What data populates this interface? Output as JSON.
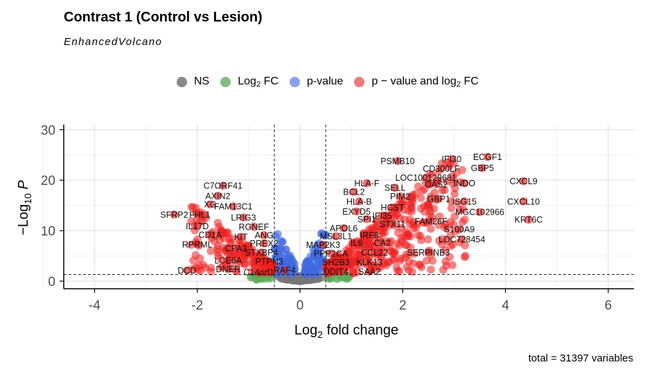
{
  "header": {
    "title": "Contrast 1 (Control vs Lesion)",
    "subtitle": "EnhancedVolcano"
  },
  "legend": {
    "ns": "NS",
    "fc_main": "Log",
    "fc_sub": "2",
    "fc_tail": " FC",
    "pval": "p-value",
    "both_main": "p − value and log",
    "both_sub": "2",
    "both_tail": " FC"
  },
  "colors": {
    "ns": "#777777",
    "fc": "#5aac5a",
    "pval": "#4169e1",
    "both": "#ee2222"
  },
  "caption": "total = 31397 variables",
  "chart_data": {
    "type": "scatter",
    "title": "Contrast 1 (Control vs Lesion)",
    "subtitle": "EnhancedVolcano",
    "xlabel": "Log2 fold change",
    "ylabel": "−Log10 P",
    "xlim": [
      -4.6,
      6.5
    ],
    "ylim": [
      -1.5,
      31
    ],
    "x_ticks": [
      -4,
      -2,
      0,
      2,
      4,
      6
    ],
    "y_ticks": [
      0,
      10,
      20,
      30
    ],
    "fc_cutoffs": [
      -0.5,
      0.5
    ],
    "p_cutoff_line": 1.3,
    "grid": true,
    "legend_position": "top",
    "series": [
      {
        "name": "NS",
        "color": "#777777"
      },
      {
        "name": "Log2 FC",
        "color": "#5aac5a"
      },
      {
        "name": "p-value",
        "color": "#4169e1"
      },
      {
        "name": "p − value and log2 FC",
        "color": "#ee2222"
      }
    ],
    "labeled_genes": [
      {
        "gene": "ECGF1",
        "x": 3.65,
        "y": 24.6
      },
      {
        "gene": "IFI30",
        "x": 2.95,
        "y": 24.2
      },
      {
        "gene": "PSMB10",
        "x": 1.9,
        "y": 23.8
      },
      {
        "gene": "GBP5",
        "x": 3.55,
        "y": 22.4
      },
      {
        "gene": "CD300LF",
        "x": 2.75,
        "y": 22.3
      },
      {
        "gene": "LOC100129681",
        "x": 2.45,
        "y": 20.5
      },
      {
        "gene": "CXCL9",
        "x": 4.35,
        "y": 19.8
      },
      {
        "gene": "INDO",
        "x": 3.2,
        "y": 19.4
      },
      {
        "gene": "OAS2",
        "x": 2.65,
        "y": 19.2
      },
      {
        "gene": "HLA-F",
        "x": 1.3,
        "y": 19.4
      },
      {
        "gene": "C7ORF41",
        "x": -1.5,
        "y": 18.9
      },
      {
        "gene": "SELL",
        "x": 1.85,
        "y": 18.5
      },
      {
        "gene": "BCL2",
        "x": 1.05,
        "y": 17.7
      },
      {
        "gene": "PIM2",
        "x": 1.95,
        "y": 16.8
      },
      {
        "gene": "GBP1",
        "x": 2.7,
        "y": 16.3
      },
      {
        "gene": "AXIN2",
        "x": -1.6,
        "y": 16.9
      },
      {
        "gene": "CXCL10",
        "x": 4.35,
        "y": 15.8
      },
      {
        "gene": "ISG15",
        "x": 3.2,
        "y": 15.8
      },
      {
        "gene": "HLA-B",
        "x": 1.15,
        "y": 15.8
      },
      {
        "gene": "XG",
        "x": -1.75,
        "y": 15.2
      },
      {
        "gene": "FAM13C1",
        "x": -1.3,
        "y": 14.8
      },
      {
        "gene": "HCST",
        "x": 1.8,
        "y": 14.6
      },
      {
        "gene": "MGC102966",
        "x": 3.5,
        "y": 13.7
      },
      {
        "gene": "EXYD5",
        "x": 1.1,
        "y": 13.8
      },
      {
        "gene": "SFRP2",
        "x": -2.45,
        "y": 13.2
      },
      {
        "gene": "FHL1",
        "x": -1.95,
        "y": 13.2
      },
      {
        "gene": "IFI35",
        "x": 1.6,
        "y": 13.0
      },
      {
        "gene": "LRIG3",
        "x": -1.1,
        "y": 12.6
      },
      {
        "gene": "SPI1",
        "x": 1.3,
        "y": 12.3
      },
      {
        "gene": "KRT6C",
        "x": 4.45,
        "y": 12.2
      },
      {
        "gene": "FAM26F",
        "x": 2.55,
        "y": 11.9
      },
      {
        "gene": "STX11",
        "x": 1.8,
        "y": 11.3
      },
      {
        "gene": "IL17D",
        "x": -2.0,
        "y": 10.9
      },
      {
        "gene": "RGNEF",
        "x": -0.9,
        "y": 10.8
      },
      {
        "gene": "APOL6",
        "x": 0.85,
        "y": 10.5
      },
      {
        "gene": "S100A9",
        "x": 3.1,
        "y": 10.3
      },
      {
        "gene": "CD1A",
        "x": -1.75,
        "y": 9.2
      },
      {
        "gene": "KIT",
        "x": -1.15,
        "y": 8.8
      },
      {
        "gene": "ANG",
        "x": -0.7,
        "y": 9.1
      },
      {
        "gene": "IRF8",
        "x": 1.35,
        "y": 9.1
      },
      {
        "gene": "MSL3L1",
        "x": 0.7,
        "y": 8.9
      },
      {
        "gene": "LOC728454",
        "x": 3.15,
        "y": 8.3
      },
      {
        "gene": "PREX2",
        "x": -0.7,
        "y": 7.5
      },
      {
        "gene": "RPRML",
        "x": -2.0,
        "y": 7.3
      },
      {
        "gene": "IL6",
        "x": 1.1,
        "y": 7.6
      },
      {
        "gene": "CA2",
        "x": 1.6,
        "y": 7.6
      },
      {
        "gene": "MAP2K3",
        "x": 0.45,
        "y": 7.2
      },
      {
        "gene": "CPA3",
        "x": -1.25,
        "y": 6.5
      },
      {
        "gene": "STXBP4",
        "x": -0.75,
        "y": 5.7
      },
      {
        "gene": "PPP2CA",
        "x": 0.6,
        "y": 5.5
      },
      {
        "gene": "CCL22",
        "x": 1.45,
        "y": 5.7
      },
      {
        "gene": "SERPINB3",
        "x": 2.5,
        "y": 5.7
      },
      {
        "gene": "LCE6A",
        "x": -1.4,
        "y": 4.1
      },
      {
        "gene": "PTPN3",
        "x": -0.6,
        "y": 3.9
      },
      {
        "gene": "SH2B3",
        "x": 0.7,
        "y": 3.8
      },
      {
        "gene": "KLK13",
        "x": 1.35,
        "y": 3.8
      },
      {
        "gene": "DNER",
        "x": -1.4,
        "y": 2.4
      },
      {
        "gene": "RAF4",
        "x": -0.3,
        "y": 2.2
      },
      {
        "gene": "DCD",
        "x": -2.2,
        "y": 2.1
      },
      {
        "gene": "C14orf1",
        "x": -0.8,
        "y": 1.8
      },
      {
        "gene": "DDIT4",
        "x": 0.7,
        "y": 1.9
      },
      {
        "gene": "SAA2",
        "x": 1.35,
        "y": 1.9
      }
    ]
  }
}
